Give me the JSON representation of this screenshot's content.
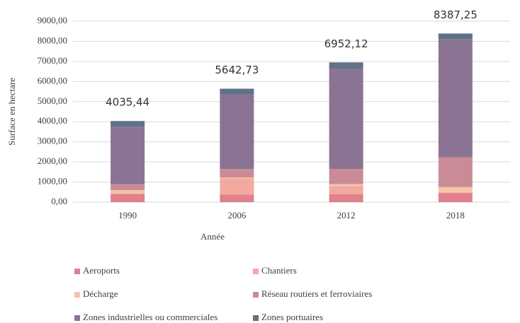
{
  "chart_data": {
    "type": "stacked_bar",
    "categories": [
      "1990",
      "2006",
      "2012",
      "2018"
    ],
    "series": [
      {
        "name": "Aeroports",
        "color": "#e0808a",
        "values": [
          400,
          380,
          400,
          450
        ]
      },
      {
        "name": "Chantiers",
        "color": "#f2a9a0",
        "values": [
          50,
          800,
          400,
          50
        ]
      },
      {
        "name": "Décharge",
        "color": "#f5c3a8",
        "values": [
          150,
          50,
          100,
          250
        ]
      },
      {
        "name": "Réseau routiers et ferroviaires",
        "color": "#c98b95",
        "values": [
          300,
          420,
          750,
          1480
        ]
      },
      {
        "name": "Zones industrielles ou commerciales",
        "color": "#8a7393",
        "values": [
          2850,
          3700,
          4980,
          5880
        ]
      },
      {
        "name": "Zones portuaires",
        "color": "#5f7287",
        "values": [
          285.44,
          292.73,
          322.12,
          277.25
        ]
      }
    ],
    "totals": [
      4035.44,
      5642.73,
      6952.12,
      8387.25
    ],
    "total_labels": [
      "4035,44",
      "5642,73",
      "6952,12",
      "8387,25"
    ],
    "xlabel": "Année",
    "ylabel": "Surface en hectare",
    "ylim": [
      0,
      9000
    ],
    "yticks": [
      {
        "value": 0,
        "label": "0,00"
      },
      {
        "value": 1000,
        "label": "1000,00"
      },
      {
        "value": 2000,
        "label": "2000,00"
      },
      {
        "value": 3000,
        "label": "3000,00"
      },
      {
        "value": 4000,
        "label": "4000,00"
      },
      {
        "value": 5000,
        "label": "5000,00"
      },
      {
        "value": 6000,
        "label": "6000,00"
      },
      {
        "value": 7000,
        "label": "7000,00"
      },
      {
        "value": 8000,
        "label": "8000,00"
      },
      {
        "value": 9000,
        "label": "9000,00"
      }
    ],
    "grid": true,
    "legend": "bottom"
  }
}
